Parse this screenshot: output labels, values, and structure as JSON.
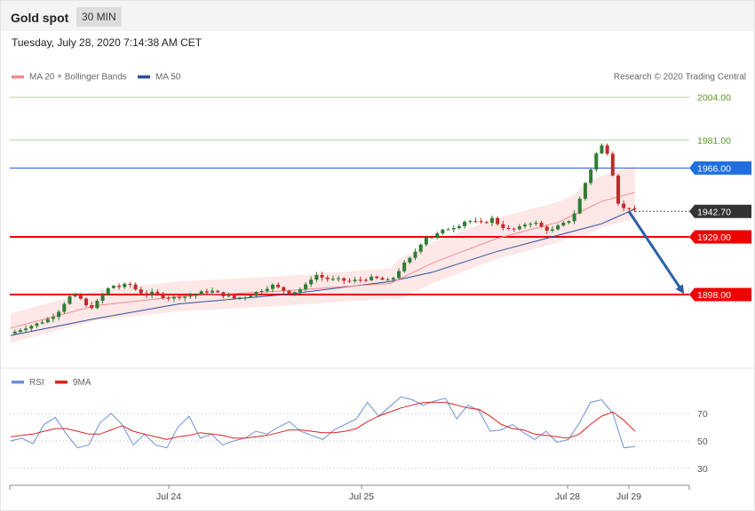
{
  "header": {
    "title": "Gold spot",
    "interval": "30 MIN",
    "datetime": "Tuesday, July 28, 2020 7:14:38 AM CET"
  },
  "legend": {
    "ma20_label": "MA 20 + Bollinger Bands",
    "ma50_label": "MA 50",
    "credit": "Research © 2020 Trading Central",
    "rsi_label": "RSI",
    "rsi_ma_label": "9MA"
  },
  "colors": {
    "up_candle": "#2e7d32",
    "down_candle": "#c62828",
    "ma20": "#f28b8b",
    "bollinger_fill": "#fde3e3",
    "ma50": "#2b4f9e",
    "resistance_green": "#b5d39a",
    "resistance_blue": "#2255dd",
    "support_red": "#ee0000",
    "price_tag": "#333333",
    "arrow": "#2b5ea8",
    "rsi": "#6d8fd6",
    "rsi_ma": "#dd2222"
  },
  "chart_data": [
    {
      "type": "candlestick",
      "title": "Gold spot",
      "interval": "30 MIN",
      "ylim": [
        1872,
        2019
      ],
      "x_labels": [
        "Jul 24",
        "Jul 25",
        "Jul 28",
        "Jul 29"
      ],
      "levels": [
        {
          "value": 2004.0,
          "label": "2004.00",
          "style": "green"
        },
        {
          "value": 1981.0,
          "label": "1981.00",
          "style": "green"
        },
        {
          "value": 1966.0,
          "label": "1966.00",
          "style": "blue"
        },
        {
          "value": 1942.7,
          "label": "1942.70",
          "style": "last"
        },
        {
          "value": 1929.0,
          "label": "1929.00",
          "style": "red"
        },
        {
          "value": 1898.0,
          "label": "1898.00",
          "style": "red"
        }
      ],
      "last_price": 1942.7,
      "forecast_arrow": {
        "from": 1942.7,
        "to": 1898.0
      },
      "price_path": [
        [
          0,
          1877
        ],
        [
          6,
          1880
        ],
        [
          12,
          1882
        ],
        [
          18,
          1885
        ],
        [
          22,
          1888
        ],
        [
          25,
          1893
        ],
        [
          29,
          1898
        ],
        [
          33,
          1896
        ],
        [
          37,
          1890
        ],
        [
          41,
          1894
        ],
        [
          45,
          1900
        ],
        [
          48,
          1903
        ],
        [
          52,
          1902
        ],
        [
          56,
          1904
        ],
        [
          60,
          1900
        ],
        [
          64,
          1898
        ],
        [
          68,
          1899
        ],
        [
          72,
          1897
        ],
        [
          76,
          1896
        ],
        [
          80,
          1897
        ],
        [
          84,
          1897
        ],
        [
          90,
          1899
        ],
        [
          95,
          1900
        ],
        [
          100,
          1898
        ],
        [
          106,
          1896
        ],
        [
          112,
          1897
        ],
        [
          118,
          1900
        ],
        [
          124,
          1903
        ],
        [
          128,
          1901
        ],
        [
          132,
          1899
        ],
        [
          136,
          1900
        ],
        [
          140,
          1903
        ],
        [
          144,
          1909
        ],
        [
          148,
          1907
        ],
        [
          152,
          1906
        ],
        [
          156,
          1906
        ],
        [
          160,
          1905
        ],
        [
          166,
          1906
        ],
        [
          172,
          1907
        ],
        [
          176,
          1906
        ],
        [
          180,
          1905
        ],
        [
          186,
          1914
        ],
        [
          190,
          1918
        ],
        [
          194,
          1925
        ],
        [
          197,
          1929
        ],
        [
          200,
          1929
        ],
        [
          206,
          1933
        ],
        [
          212,
          1935
        ],
        [
          216,
          1938
        ],
        [
          220,
          1937
        ],
        [
          224,
          1936
        ],
        [
          228,
          1939
        ],
        [
          232,
          1935
        ],
        [
          236,
          1933
        ],
        [
          240,
          1933
        ],
        [
          244,
          1936
        ],
        [
          248,
          1937
        ],
        [
          252,
          1934
        ],
        [
          256,
          1932
        ],
        [
          260,
          1935
        ],
        [
          264,
          1937
        ],
        [
          268,
          1943
        ],
        [
          270,
          1950
        ],
        [
          272,
          1957
        ],
        [
          274,
          1962
        ],
        [
          276,
          1969
        ],
        [
          278,
          1975
        ],
        [
          281,
          1979
        ],
        [
          283,
          1974
        ],
        [
          285,
          1966
        ],
        [
          287,
          1950
        ],
        [
          289,
          1945
        ],
        [
          291,
          1944
        ],
        [
          293,
          1945
        ],
        [
          296,
          1943
        ]
      ],
      "ma20_path": [
        [
          0,
          1880
        ],
        [
          40,
          1892
        ],
        [
          80,
          1897
        ],
        [
          130,
          1900
        ],
        [
          180,
          1904
        ],
        [
          200,
          1915
        ],
        [
          230,
          1928
        ],
        [
          260,
          1937
        ],
        [
          280,
          1948
        ],
        [
          296,
          1953
        ]
      ],
      "ma50_path": [
        [
          0,
          1876
        ],
        [
          40,
          1885
        ],
        [
          80,
          1893
        ],
        [
          130,
          1898
        ],
        [
          180,
          1905
        ],
        [
          200,
          1910
        ],
        [
          230,
          1921
        ],
        [
          260,
          1930
        ],
        [
          280,
          1936
        ],
        [
          296,
          1944
        ]
      ]
    },
    {
      "type": "line",
      "title": "RSI",
      "ylim": [
        20,
        80
      ],
      "y_ticks": [
        30,
        50,
        70
      ],
      "series": [
        {
          "name": "RSI",
          "values": [
            50,
            52,
            48,
            62,
            67,
            55,
            45,
            47,
            63,
            70,
            62,
            47,
            55,
            47,
            45,
            60,
            68,
            52,
            55,
            47,
            50,
            52,
            57,
            55,
            60,
            64,
            57,
            54,
            51,
            58,
            62,
            66,
            78,
            68,
            75,
            82,
            80,
            76,
            79,
            81,
            66,
            76,
            72,
            57,
            58,
            62,
            56,
            51,
            57,
            49,
            51,
            63,
            78,
            80,
            70,
            45,
            46
          ]
        },
        {
          "name": "9MA",
          "values": [
            53,
            54,
            55,
            57,
            59,
            59,
            57,
            55,
            55,
            58,
            61,
            57,
            55,
            53,
            51,
            53,
            54,
            56,
            55,
            54,
            52,
            52,
            53,
            54,
            56,
            58,
            58,
            57,
            56,
            56,
            57,
            59,
            64,
            68,
            71,
            74,
            76,
            78,
            78,
            78,
            76,
            74,
            73,
            68,
            62,
            59,
            58,
            55,
            54,
            53,
            52,
            55,
            62,
            68,
            71,
            65,
            57
          ]
        }
      ]
    }
  ]
}
